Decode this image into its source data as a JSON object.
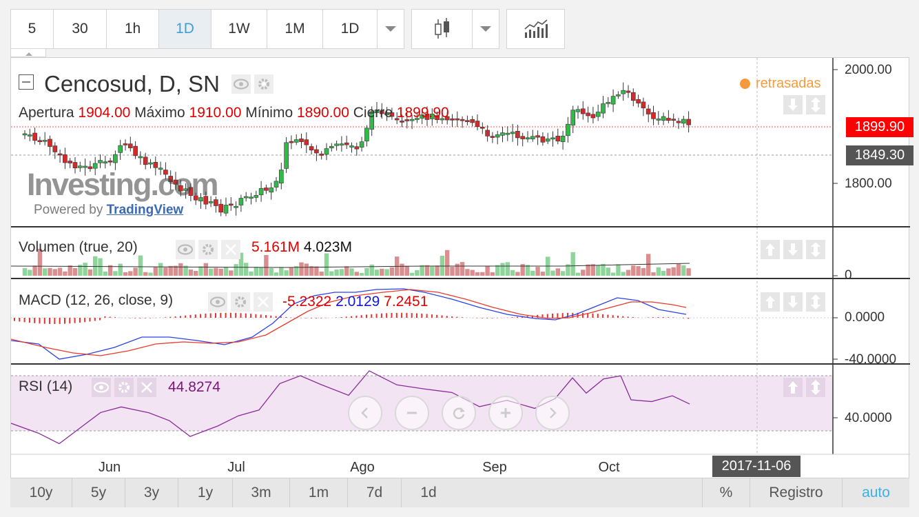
{
  "toolbar": {
    "intervals": [
      "5",
      "30",
      "1h",
      "1D",
      "1W",
      "1M",
      "1D"
    ],
    "active_interval_index": 3
  },
  "chart": {
    "symbol_title": "Cencosud, D, SN",
    "ohlc": {
      "open_label": "Apertura",
      "open": "1904.00",
      "high_label": "Máximo",
      "high": "1910.00",
      "low_label": "Mínimo",
      "low": "1890.00",
      "close_label": "Cierre",
      "close": "1899.90"
    },
    "delayed_label": "retrasadas",
    "watermark": "Investing.com",
    "powered_prefix": "Powered by",
    "powered_link": "TradingView",
    "price_axis": [
      "2000.00",
      "1800.00"
    ],
    "last_price": "1899.90",
    "ref_price": "1849.30",
    "colors": {
      "up": "#33b84a",
      "down": "#d42a2a",
      "last_tag": "#ff0000",
      "ref_tag": "#555555"
    }
  },
  "volume": {
    "title": "Volumen (true, 20)",
    "value_red": "5.161M",
    "value_dark": "4.023M",
    "axis": [
      "0"
    ]
  },
  "macd": {
    "title": "MACD (12, 26, close, 9)",
    "hist": "-5.2322",
    "macd": "2.0129",
    "signal": "7.2451",
    "axis": [
      "0.0000",
      "-40.0000"
    ]
  },
  "rsi": {
    "title": "RSI (14)",
    "value": "44.8274",
    "axis": [
      "40.0000"
    ]
  },
  "x_axis": {
    "months": [
      "Jun",
      "Jul",
      "Ago",
      "Sep",
      "Oct"
    ],
    "date_tag": "2017-11-06"
  },
  "bottom": {
    "ranges": [
      "10y",
      "5y",
      "3y",
      "1y",
      "3m",
      "1m",
      "7d",
      "1d"
    ],
    "percent": "%",
    "log": "Registro",
    "auto": "auto"
  }
}
